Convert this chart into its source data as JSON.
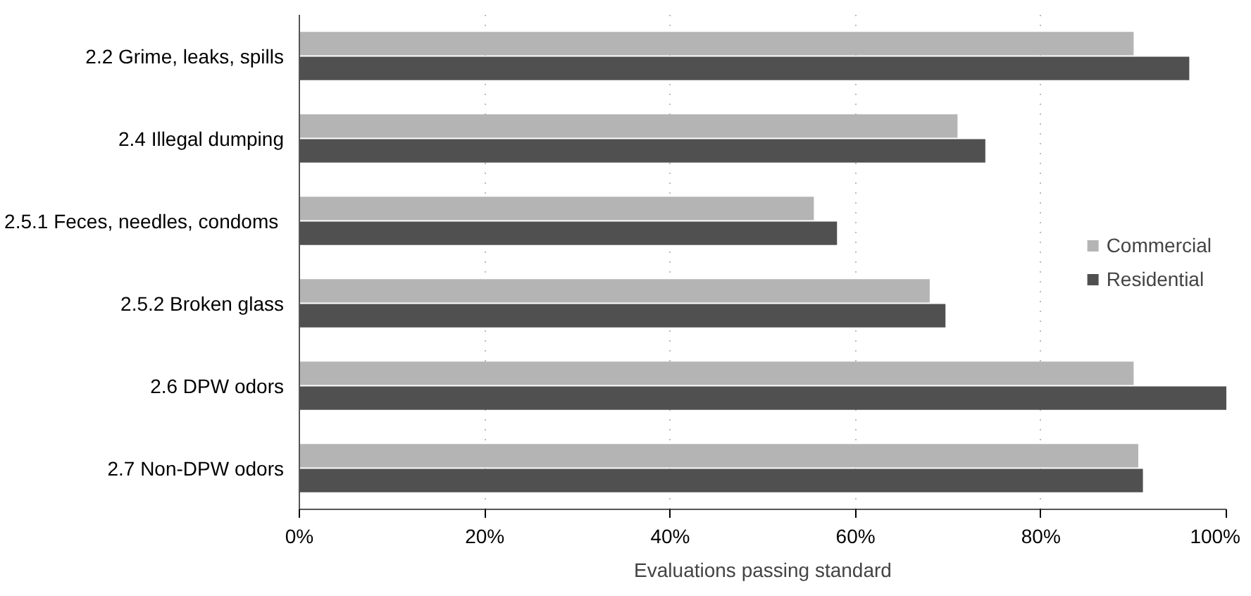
{
  "chart_data": {
    "type": "bar",
    "orientation": "horizontal",
    "xlabel": "Evaluations passing standard",
    "categories": [
      "2.2 Grime, leaks, spills",
      "2.4 Illegal dumping",
      "2.5.1  Feces, needles, condoms",
      "2.5.2 Broken glass",
      "2.6 DPW odors",
      "2.7 Non-DPW odors"
    ],
    "series": [
      {
        "name": "Commercial",
        "color": "#b4b4b4",
        "values": [
          90,
          71,
          55.5,
          68,
          90,
          90.5
        ]
      },
      {
        "name": "Residential",
        "color": "#505050",
        "values": [
          96,
          74,
          58,
          69.7,
          100,
          91
        ]
      }
    ],
    "xlim": [
      0,
      100
    ],
    "xticks": [
      {
        "value": 0,
        "label": "0%"
      },
      {
        "value": 20,
        "label": "20%"
      },
      {
        "value": 40,
        "label": "40%"
      },
      {
        "value": 60,
        "label": "60%"
      },
      {
        "value": 80,
        "label": "80%"
      },
      {
        "value": 100,
        "label": "100%"
      }
    ],
    "grid": "x",
    "legend": "right"
  }
}
